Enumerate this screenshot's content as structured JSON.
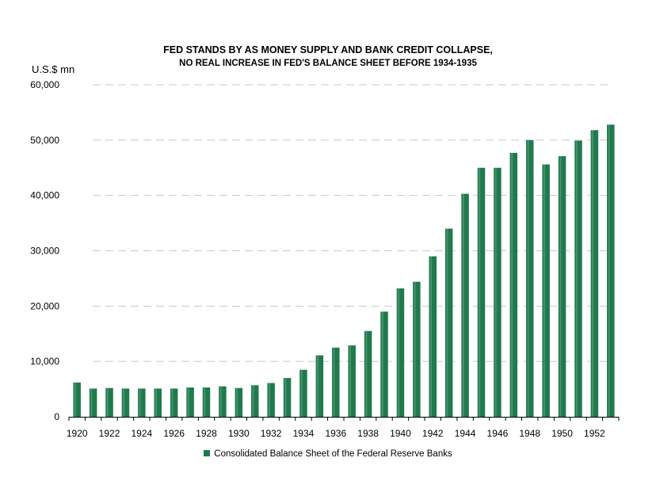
{
  "chart_data": {
    "type": "bar",
    "title": "FED STANDS BY AS MONEY SUPPLY AND BANK CREDIT COLLAPSE,",
    "subtitle": "NO REAL INCREASE IN FED'S BALANCE SHEET BEFORE 1934-1935",
    "ylabel": "U.S.$ mn",
    "xlabel": "",
    "ylim": [
      0,
      60000
    ],
    "yticks": [
      0,
      10000,
      20000,
      30000,
      40000,
      50000,
      60000
    ],
    "ytick_labels": [
      "0",
      "10,000",
      "20,000",
      "30,000",
      "40,000",
      "50,000",
      "60,000"
    ],
    "xtick_labels": [
      "1920",
      "1922",
      "1924",
      "1926",
      "1928",
      "1930",
      "1932",
      "1934",
      "1936",
      "1938",
      "1940",
      "1942",
      "1944",
      "1946",
      "1948",
      "1950",
      "1952"
    ],
    "grid": "horizontal dashed",
    "legend_position": "bottom",
    "categories": [
      "1920",
      "1921",
      "1922",
      "1923",
      "1924",
      "1925",
      "1926",
      "1927",
      "1928",
      "1929",
      "1930",
      "1931",
      "1932",
      "1933",
      "1934",
      "1935",
      "1936",
      "1937",
      "1938",
      "1939",
      "1940",
      "1941",
      "1942",
      "1943",
      "1944",
      "1945",
      "1946",
      "1947",
      "1948",
      "1949",
      "1950",
      "1951",
      "1952",
      "1953"
    ],
    "series": [
      {
        "name": "Consolidated Balance Sheet of the Federal Reserve Banks",
        "color": "#1f7a4c",
        "values": [
          6200,
          5100,
          5200,
          5100,
          5100,
          5100,
          5100,
          5300,
          5300,
          5500,
          5200,
          5700,
          6100,
          7000,
          8500,
          11100,
          12500,
          12900,
          15500,
          19000,
          23200,
          24400,
          29000,
          34000,
          40300,
          45000,
          45000,
          47700,
          50000,
          45600,
          47100,
          49900,
          51800,
          52800
        ]
      }
    ]
  }
}
